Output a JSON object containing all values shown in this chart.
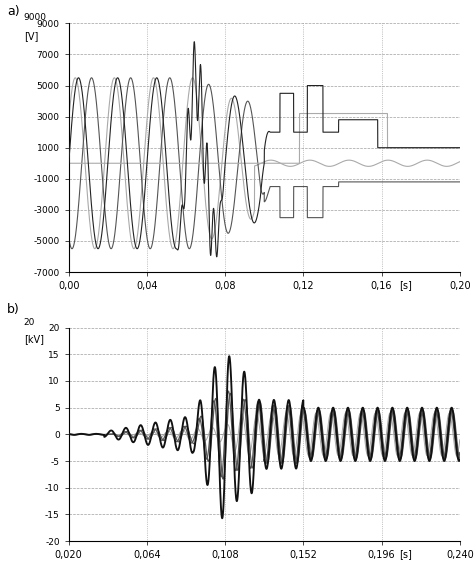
{
  "plot_a": {
    "label": "a)",
    "ylabel": "[V]",
    "xlim": [
      0.0,
      0.2
    ],
    "ylim": [
      -7000,
      9000
    ],
    "yticks": [
      -7000,
      -5000,
      -3000,
      -1000,
      1000,
      3000,
      5000,
      7000,
      9000
    ],
    "xticks": [
      0.0,
      0.04,
      0.08,
      0.12,
      0.16,
      0.2
    ],
    "xtick_labels": [
      "0,00",
      "0,04",
      "0,08",
      "0,12",
      "0,16",
      "0,20"
    ]
  },
  "plot_b": {
    "label": "b)",
    "ylabel": "[kV]",
    "xlim": [
      0.02,
      0.24
    ],
    "ylim": [
      -20,
      20
    ],
    "yticks": [
      -20,
      -15,
      -10,
      -5,
      0,
      5,
      10,
      15,
      20
    ],
    "xticks": [
      0.02,
      0.064,
      0.108,
      0.152,
      0.196,
      0.24
    ],
    "xtick_labels": [
      "0,020",
      "0,064",
      "0,108",
      "0,152",
      "0,196",
      "0,240"
    ]
  },
  "grid_color": "#888888",
  "line_dark": "#222222",
  "line_mid": "#555555",
  "line_light": "#aaaaaa"
}
